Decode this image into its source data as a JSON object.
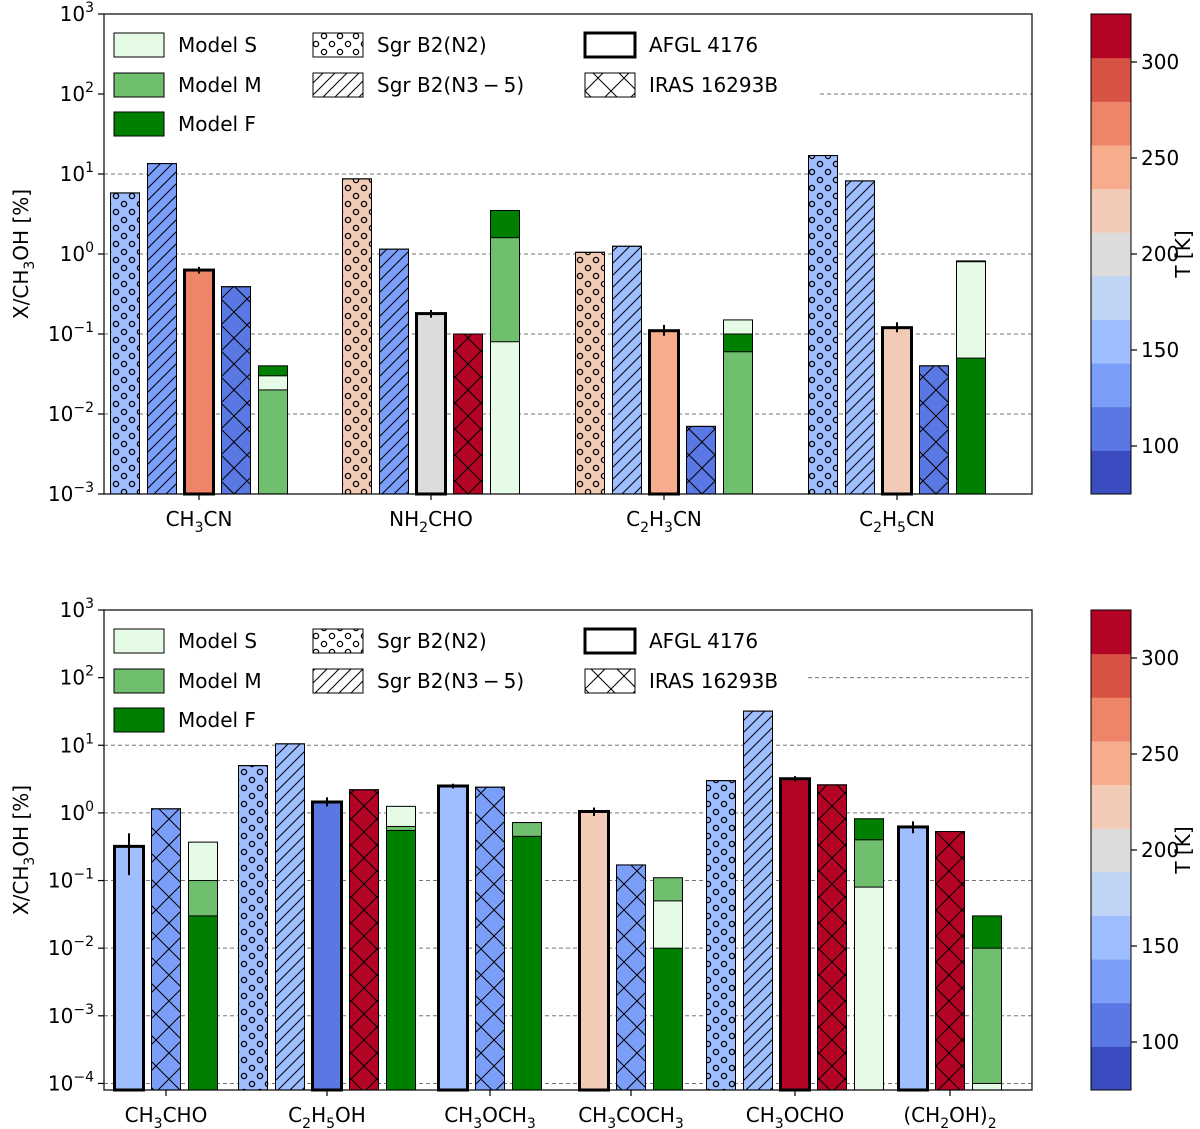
{
  "chart_data": [
    {
      "type": "bar",
      "scale": "log",
      "ylabel_main": "X/CH",
      "ylabel_sub": "3",
      "ylabel_tail": "OH [%]",
      "ylim": [
        0.001,
        1000
      ],
      "yticks": [
        {
          "exp": "3",
          "value": 1000
        },
        {
          "exp": "2",
          "value": 100
        },
        {
          "exp": "1",
          "value": 10
        },
        {
          "exp": "0",
          "value": 1
        },
        {
          "exp": "−1",
          "value": 0.1
        },
        {
          "exp": "−2",
          "value": 0.01
        },
        {
          "exp": "−3",
          "value": 0.001
        }
      ],
      "categories": [
        {
          "parts": [
            [
              "CH",
              0
            ],
            [
              "3",
              1
            ],
            [
              "CN",
              0
            ]
          ]
        },
        {
          "parts": [
            [
              "NH",
              0
            ],
            [
              "2",
              1
            ],
            [
              "CHO",
              0
            ]
          ]
        },
        {
          "parts": [
            [
              "C",
              0
            ],
            [
              "2",
              1
            ],
            [
              "H",
              0
            ],
            [
              "3",
              1
            ],
            [
              "CN",
              0
            ]
          ]
        },
        {
          "parts": [
            [
              "C",
              0
            ],
            [
              "2",
              1
            ],
            [
              "H",
              0
            ],
            [
              "5",
              1
            ],
            [
              "CN",
              0
            ]
          ]
        }
      ],
      "bars": [
        {
          "cat": 0,
          "slot": 0,
          "source": "Sgr B2(N2)",
          "value": 5.8,
          "T": 150
        },
        {
          "cat": 0,
          "slot": 1,
          "source": "Sgr B2(N3-5)",
          "value": 13.5,
          "T": 130
        },
        {
          "cat": 0,
          "slot": 2,
          "source": "AFGL 4176",
          "value": 0.63,
          "T": 260,
          "err": [
            0.57,
            0.69
          ]
        },
        {
          "cat": 0,
          "slot": 3,
          "source": "IRAS 16293B",
          "value": 0.39,
          "T": 110
        },
        {
          "cat": 0,
          "slot": 4,
          "source": "Models",
          "S": 0.03,
          "M": 0.02,
          "F": 0.04
        },
        {
          "cat": 1,
          "slot": 0,
          "source": "Sgr B2(N2)",
          "value": 8.7,
          "T": 215
        },
        {
          "cat": 1,
          "slot": 1,
          "source": "Sgr B2(N3-5)",
          "value": 1.15,
          "T": 130
        },
        {
          "cat": 1,
          "slot": 2,
          "source": "AFGL 4176",
          "value": 0.18,
          "T": 195,
          "err": [
            0.16,
            0.2
          ]
        },
        {
          "cat": 1,
          "slot": 3,
          "source": "IRAS 16293B",
          "value": 0.1,
          "T": 320
        },
        {
          "cat": 1,
          "slot": 4,
          "source": "Models",
          "S": 0.08,
          "M": 1.6,
          "F": 3.5
        },
        {
          "cat": 2,
          "slot": 0,
          "source": "Sgr B2(N2)",
          "value": 1.05,
          "T": 215
        },
        {
          "cat": 2,
          "slot": 1,
          "source": "Sgr B2(N3-5)",
          "value": 1.25,
          "T": 160
        },
        {
          "cat": 2,
          "slot": 2,
          "source": "AFGL 4176",
          "value": 0.11,
          "T": 240,
          "err": [
            0.095,
            0.13
          ]
        },
        {
          "cat": 2,
          "slot": 3,
          "source": "IRAS 16293B",
          "value": 0.007,
          "T": 110
        },
        {
          "cat": 2,
          "slot": 4,
          "source": "Models",
          "S": 0.15,
          "M": 0.06,
          "F": 0.1
        },
        {
          "cat": 3,
          "slot": 0,
          "source": "Sgr B2(N2)",
          "value": 17,
          "T": 150
        },
        {
          "cat": 3,
          "slot": 1,
          "source": "Sgr B2(N3-5)",
          "value": 8.2,
          "T": 160
        },
        {
          "cat": 3,
          "slot": 2,
          "source": "AFGL 4176",
          "value": 0.12,
          "T": 215,
          "err": [
            0.105,
            0.14
          ]
        },
        {
          "cat": 3,
          "slot": 3,
          "source": "IRAS 16293B",
          "value": 0.04,
          "T": 110
        },
        {
          "cat": 3,
          "slot": 4,
          "source": "Models",
          "S": 0.8,
          "M": 0.82,
          "F": 0.05
        }
      ]
    },
    {
      "type": "bar",
      "scale": "log",
      "ylabel_main": "X/CH",
      "ylabel_sub": "3",
      "ylabel_tail": "OH [%]",
      "ylim": [
        8e-05,
        1000
      ],
      "yticks": [
        {
          "exp": "3",
          "value": 1000
        },
        {
          "exp": "2",
          "value": 100
        },
        {
          "exp": "1",
          "value": 10
        },
        {
          "exp": "0",
          "value": 1
        },
        {
          "exp": "−1",
          "value": 0.1
        },
        {
          "exp": "−2",
          "value": 0.01
        },
        {
          "exp": "−3",
          "value": 0.001
        },
        {
          "exp": "−4",
          "value": 0.0001
        }
      ],
      "categories": [
        {
          "parts": [
            [
              "CH",
              0
            ],
            [
              "3",
              1
            ],
            [
              "CHO",
              0
            ]
          ]
        },
        {
          "parts": [
            [
              "C",
              0
            ],
            [
              "2",
              1
            ],
            [
              "H",
              0
            ],
            [
              "5",
              1
            ],
            [
              "OH",
              0
            ]
          ]
        },
        {
          "parts": [
            [
              "CH",
              0
            ],
            [
              "3",
              1
            ],
            [
              "OCH",
              0
            ],
            [
              "3",
              1
            ]
          ]
        },
        {
          "parts": [
            [
              "CH",
              0
            ],
            [
              "3",
              1
            ],
            [
              "COCH",
              0
            ],
            [
              "3",
              1
            ]
          ]
        },
        {
          "parts": [
            [
              "CH",
              0
            ],
            [
              "3",
              1
            ],
            [
              "OCHO",
              0
            ]
          ]
        },
        {
          "parts": [
            [
              "(CH",
              0
            ],
            [
              "2",
              1
            ],
            [
              "OH)",
              0
            ],
            [
              "2",
              1
            ]
          ]
        }
      ],
      "bars": [
        {
          "cat": 0,
          "slot": 0,
          "source": "AFGL 4176",
          "value": 0.32,
          "T": 160,
          "err": [
            0.12,
            0.5
          ]
        },
        {
          "cat": 0,
          "slot": 1,
          "source": "IRAS 16293B",
          "value": 1.15,
          "T": 130
        },
        {
          "cat": 0,
          "slot": 2,
          "source": "Models",
          "S": 0.37,
          "M": 0.1,
          "F": 0.03
        },
        {
          "cat": 1,
          "slot": 0,
          "source": "Sgr B2(N2)",
          "value": 5,
          "T": 160
        },
        {
          "cat": 1,
          "slot": 1,
          "source": "Sgr B2(N3-5)",
          "value": 10.5,
          "T": 160
        },
        {
          "cat": 1,
          "slot": 2,
          "source": "AFGL 4176",
          "value": 1.45,
          "T": 110,
          "err": [
            1.25,
            1.7
          ]
        },
        {
          "cat": 1,
          "slot": 3,
          "source": "IRAS 16293B",
          "value": 2.2,
          "T": 320
        },
        {
          "cat": 1,
          "slot": 4,
          "source": "Models",
          "S": 1.25,
          "M": 0.63,
          "F": 0.55
        },
        {
          "cat": 2,
          "slot": 0,
          "source": "AFGL 4176",
          "value": 2.5,
          "T": 160,
          "err": [
            2.3,
            2.7
          ]
        },
        {
          "cat": 2,
          "slot": 1,
          "source": "IRAS 16293B",
          "value": 2.4,
          "T": 130
        },
        {
          "cat": 2,
          "slot": 2,
          "source": "Models",
          "S": 0.72,
          "M": 0.72,
          "F": 0.45
        },
        {
          "cat": 3,
          "slot": 0,
          "source": "AFGL 4176",
          "value": 1.05,
          "T": 215,
          "err": [
            0.9,
            1.2
          ]
        },
        {
          "cat": 3,
          "slot": 1,
          "source": "IRAS 16293B",
          "value": 0.17,
          "T": 130
        },
        {
          "cat": 3,
          "slot": 2,
          "source": "Models",
          "S": 0.05,
          "M": 0.11,
          "F": 0.01
        },
        {
          "cat": 4,
          "slot": 0,
          "source": "Sgr B2(N2)",
          "value": 3,
          "T": 160
        },
        {
          "cat": 4,
          "slot": 1,
          "source": "Sgr B2(N3-5)",
          "value": 32,
          "T": 160
        },
        {
          "cat": 4,
          "slot": 2,
          "source": "AFGL 4176",
          "value": 3.2,
          "T": 320,
          "err": [
            2.9,
            3.5
          ]
        },
        {
          "cat": 4,
          "slot": 3,
          "source": "IRAS 16293B",
          "value": 2.6,
          "T": 320
        },
        {
          "cat": 4,
          "slot": 4,
          "source": "Models",
          "S": 0.08,
          "M": 0.4,
          "F": 0.82
        },
        {
          "cat": 5,
          "slot": 0,
          "source": "AFGL 4176",
          "value": 0.62,
          "T": 150,
          "err": [
            0.5,
            0.75
          ]
        },
        {
          "cat": 5,
          "slot": 1,
          "source": "IRAS 16293B",
          "value": 0.53,
          "T": 320
        },
        {
          "cat": 5,
          "slot": 2,
          "source": "Models",
          "S": 0.0001,
          "M": 0.01,
          "F": 0.03
        }
      ]
    }
  ],
  "legend": {
    "model_s": "Model S",
    "model_m": "Model M",
    "model_f": "Model F",
    "sgr_n2": "Sgr B2(N2)",
    "sgr_n35_main": "Sgr B2(N3",
    "sgr_n35_minus": "−",
    "sgr_n35_tail": "5)",
    "afgl": "AFGL 4176",
    "iras": "IRAS 16293B"
  },
  "colorbar": {
    "label": "T [K]",
    "range": [
      75,
      325
    ],
    "ticks": [
      "100",
      "150",
      "200",
      "250",
      "300"
    ],
    "tick_values": [
      100,
      150,
      200,
      250,
      300
    ],
    "colors": [
      "#3b4cc0",
      "#5a78e4",
      "#7b9ff9",
      "#9ebeff",
      "#c0d4f5",
      "#dddcdc",
      "#f2cbb7",
      "#f7ac8e",
      "#ee8468",
      "#d65244",
      "#b40426"
    ]
  },
  "model_colors": {
    "S": "#e5fbe5",
    "M": "#6fbf6f",
    "F": "#008000"
  }
}
